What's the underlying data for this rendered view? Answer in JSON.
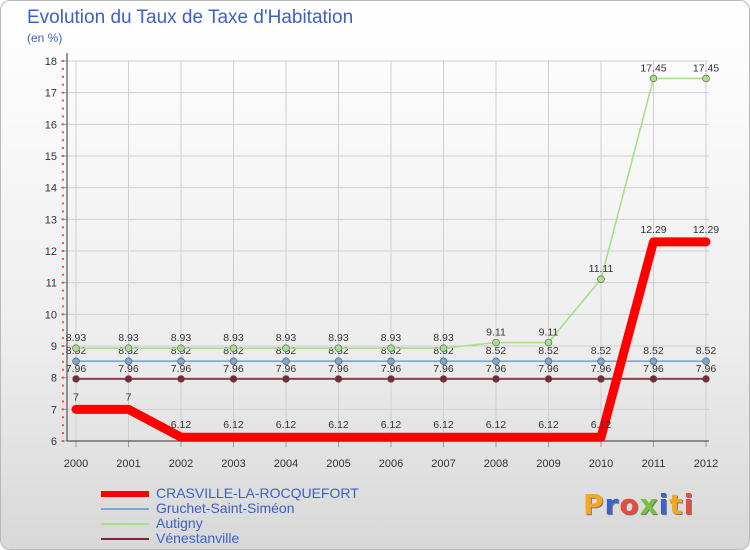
{
  "header": {
    "title": "Evolution du Taux de Taxe d'Habitation",
    "subtitle": "(en %)"
  },
  "brand": {
    "text": "Proxiti",
    "colors": [
      "#f5a623",
      "#3d61c4",
      "#e94b3c",
      "#7ac142",
      "#3d61c4",
      "#f5a623",
      "#e94b3c"
    ]
  },
  "chart_data": {
    "type": "line",
    "title": "Evolution du Taux de Taxe d'Habitation",
    "subtitle": "(en %)",
    "xlabel": "",
    "ylabel": "",
    "categories": [
      "2000",
      "2001",
      "2002",
      "2003",
      "2004",
      "2005",
      "2006",
      "2007",
      "2008",
      "2009",
      "2010",
      "2011",
      "2012"
    ],
    "ylim": [
      6,
      18
    ],
    "yticks": [
      "6",
      "7",
      "8",
      "9",
      "10",
      "11",
      "12",
      "13",
      "14",
      "15",
      "16",
      "17",
      "18"
    ],
    "grid": true,
    "legend_position": "bottom",
    "series": [
      {
        "name": "Vénestanville",
        "color": "#7b2a33",
        "labels": [
          "7.96",
          "7.96",
          "7.96",
          "7.96",
          "7.96",
          "7.96",
          "7.96",
          "7.96",
          "7.96",
          "7.96",
          "7.96",
          "7.96",
          "7.96"
        ],
        "values": [
          7.96,
          7.96,
          7.96,
          7.96,
          7.96,
          7.96,
          7.96,
          7.96,
          7.96,
          7.96,
          7.96,
          7.96,
          7.96
        ]
      },
      {
        "name": "Gruchet-Saint-Siméon",
        "color": "#7ba7cf",
        "labels": [
          "8.52",
          "8.52",
          "8.52",
          "8.52",
          "8.52",
          "8.52",
          "8.52",
          "8.52",
          "8.52",
          "8.52",
          "8.52",
          "8.52",
          "8.52"
        ],
        "values": [
          8.52,
          8.52,
          8.52,
          8.52,
          8.52,
          8.52,
          8.52,
          8.52,
          8.52,
          8.52,
          8.52,
          8.52,
          8.52
        ]
      },
      {
        "name": "Autigny",
        "color": "#a6e08c",
        "labels": [
          "8.93",
          "8.93",
          "8.93",
          "8.93",
          "8.93",
          "8.93",
          "8.93",
          "8.93",
          "9.11",
          "9.11",
          "11.11",
          "17.45",
          "17.45"
        ],
        "values": [
          8.93,
          8.93,
          8.93,
          8.93,
          8.93,
          8.93,
          8.93,
          8.93,
          9.11,
          9.11,
          11.11,
          17.45,
          17.45
        ]
      },
      {
        "name": "CRASVILLE-LA-ROCQUEFORT",
        "color": "#ff0000",
        "labels": [
          "7",
          "7",
          "6.12",
          "6.12",
          "6.12",
          "6.12",
          "6.12",
          "6.12",
          "6.12",
          "6.12",
          "6.12",
          "12.29",
          "12.29"
        ],
        "values": [
          7,
          7,
          6.12,
          6.12,
          6.12,
          6.12,
          6.12,
          6.12,
          6.12,
          6.12,
          6.12,
          12.29,
          12.29
        ]
      }
    ]
  },
  "legend": {
    "items": [
      {
        "label": "CRASVILLE-LA-ROCQUEFORT",
        "color": "#ff0000"
      },
      {
        "label": "Gruchet-Saint-Siméon",
        "color": "#7ba7cf"
      },
      {
        "label": "Autigny",
        "color": "#a6e08c"
      },
      {
        "label": "Vénestanville",
        "color": "#7b2a33"
      }
    ]
  }
}
